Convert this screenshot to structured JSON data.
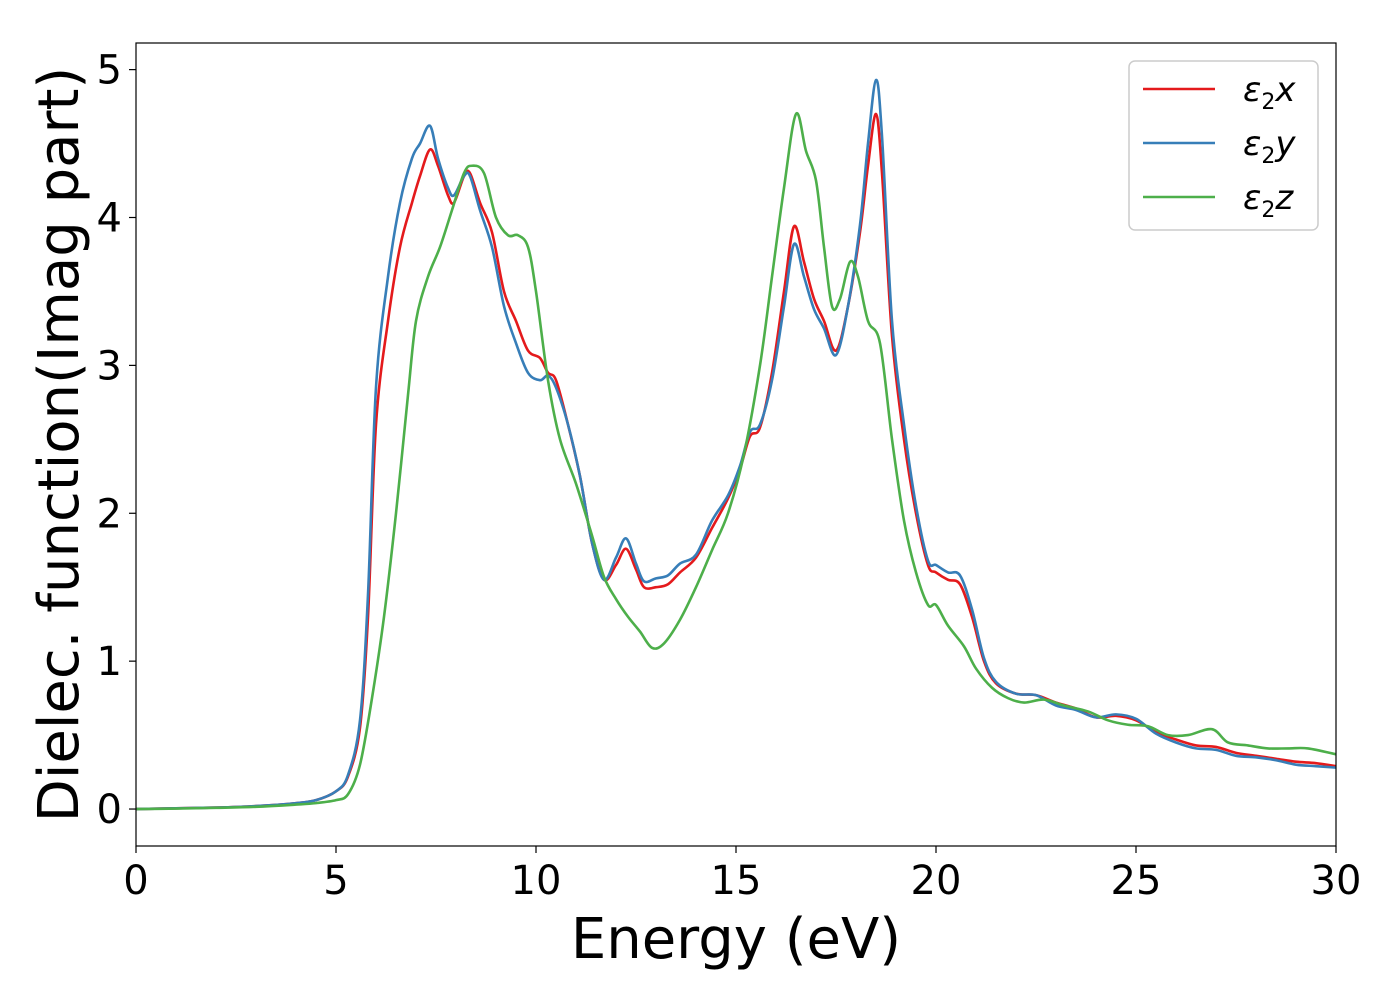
{
  "chart_data": {
    "type": "line",
    "xlabel": "Energy (eV)",
    "ylabel": "Dielec. function(Imag part)",
    "xlim": [
      0,
      30
    ],
    "ylim": [
      -0.25,
      5.18
    ],
    "xticks": [
      0,
      5,
      10,
      15,
      20,
      25,
      30
    ],
    "yticks": [
      0,
      1,
      2,
      3,
      4,
      5
    ],
    "grid": false,
    "legend_position": "top-right",
    "series": [
      {
        "name": "ε2x",
        "legend_base": "ε",
        "legend_sub": "2",
        "legend_var": "x",
        "color": "#e41a1c",
        "points": [
          [
            0,
            0
          ],
          [
            1,
            0.005
          ],
          [
            2,
            0.01
          ],
          [
            3,
            0.02
          ],
          [
            4,
            0.04
          ],
          [
            4.5,
            0.06
          ],
          [
            5,
            0.12
          ],
          [
            5.3,
            0.22
          ],
          [
            5.6,
            0.55
          ],
          [
            5.8,
            1.3
          ],
          [
            6.0,
            2.6
          ],
          [
            6.3,
            3.3
          ],
          [
            6.6,
            3.8
          ],
          [
            6.9,
            4.1
          ],
          [
            7.1,
            4.28
          ],
          [
            7.35,
            4.46
          ],
          [
            7.55,
            4.35
          ],
          [
            7.8,
            4.15
          ],
          [
            7.95,
            4.1
          ],
          [
            8.2,
            4.28
          ],
          [
            8.35,
            4.3
          ],
          [
            8.6,
            4.1
          ],
          [
            8.9,
            3.9
          ],
          [
            9.2,
            3.5
          ],
          [
            9.5,
            3.3
          ],
          [
            9.8,
            3.1
          ],
          [
            10.1,
            3.05
          ],
          [
            10.3,
            2.95
          ],
          [
            10.5,
            2.9
          ],
          [
            10.8,
            2.6
          ],
          [
            11.1,
            2.25
          ],
          [
            11.4,
            1.8
          ],
          [
            11.7,
            1.55
          ],
          [
            12.0,
            1.65
          ],
          [
            12.25,
            1.76
          ],
          [
            12.5,
            1.62
          ],
          [
            12.7,
            1.5
          ],
          [
            13.0,
            1.5
          ],
          [
            13.3,
            1.52
          ],
          [
            13.6,
            1.6
          ],
          [
            14.0,
            1.7
          ],
          [
            14.4,
            1.9
          ],
          [
            14.8,
            2.1
          ],
          [
            15.1,
            2.3
          ],
          [
            15.35,
            2.52
          ],
          [
            15.6,
            2.58
          ],
          [
            15.9,
            2.95
          ],
          [
            16.2,
            3.5
          ],
          [
            16.45,
            3.94
          ],
          [
            16.7,
            3.7
          ],
          [
            16.95,
            3.45
          ],
          [
            17.2,
            3.3
          ],
          [
            17.5,
            3.1
          ],
          [
            17.8,
            3.4
          ],
          [
            18.1,
            3.9
          ],
          [
            18.3,
            4.35
          ],
          [
            18.5,
            4.7
          ],
          [
            18.65,
            4.3
          ],
          [
            18.9,
            3.2
          ],
          [
            19.2,
            2.5
          ],
          [
            19.5,
            2.0
          ],
          [
            19.8,
            1.65
          ],
          [
            20.0,
            1.6
          ],
          [
            20.3,
            1.55
          ],
          [
            20.6,
            1.52
          ],
          [
            20.9,
            1.3
          ],
          [
            21.2,
            1.0
          ],
          [
            21.5,
            0.85
          ],
          [
            22.0,
            0.78
          ],
          [
            22.5,
            0.77
          ],
          [
            23.0,
            0.72
          ],
          [
            23.5,
            0.68
          ],
          [
            24.0,
            0.62
          ],
          [
            24.5,
            0.63
          ],
          [
            25.0,
            0.6
          ],
          [
            25.5,
            0.52
          ],
          [
            26.0,
            0.47
          ],
          [
            26.5,
            0.43
          ],
          [
            27.0,
            0.42
          ],
          [
            27.5,
            0.38
          ],
          [
            28.0,
            0.36
          ],
          [
            28.5,
            0.34
          ],
          [
            29.0,
            0.32
          ],
          [
            29.5,
            0.31
          ],
          [
            30.0,
            0.29
          ]
        ]
      },
      {
        "name": "ε2y",
        "legend_base": "ε",
        "legend_sub": "2",
        "legend_var": "y",
        "color": "#377eb8",
        "points": [
          [
            0,
            0
          ],
          [
            1,
            0.005
          ],
          [
            2,
            0.01
          ],
          [
            3,
            0.02
          ],
          [
            4,
            0.04
          ],
          [
            4.5,
            0.06
          ],
          [
            5,
            0.12
          ],
          [
            5.3,
            0.23
          ],
          [
            5.6,
            0.6
          ],
          [
            5.8,
            1.45
          ],
          [
            6.0,
            2.85
          ],
          [
            6.3,
            3.6
          ],
          [
            6.6,
            4.1
          ],
          [
            6.9,
            4.4
          ],
          [
            7.1,
            4.5
          ],
          [
            7.35,
            4.62
          ],
          [
            7.55,
            4.4
          ],
          [
            7.8,
            4.2
          ],
          [
            7.95,
            4.15
          ],
          [
            8.2,
            4.28
          ],
          [
            8.35,
            4.28
          ],
          [
            8.6,
            4.05
          ],
          [
            8.9,
            3.8
          ],
          [
            9.2,
            3.4
          ],
          [
            9.5,
            3.15
          ],
          [
            9.8,
            2.95
          ],
          [
            10.1,
            2.9
          ],
          [
            10.3,
            2.93
          ],
          [
            10.5,
            2.85
          ],
          [
            10.8,
            2.6
          ],
          [
            11.1,
            2.25
          ],
          [
            11.4,
            1.8
          ],
          [
            11.7,
            1.55
          ],
          [
            12.0,
            1.7
          ],
          [
            12.25,
            1.83
          ],
          [
            12.5,
            1.66
          ],
          [
            12.7,
            1.54
          ],
          [
            13.0,
            1.56
          ],
          [
            13.3,
            1.58
          ],
          [
            13.6,
            1.66
          ],
          [
            14.0,
            1.72
          ],
          [
            14.4,
            1.95
          ],
          [
            14.8,
            2.12
          ],
          [
            15.1,
            2.32
          ],
          [
            15.35,
            2.55
          ],
          [
            15.6,
            2.6
          ],
          [
            15.9,
            2.9
          ],
          [
            16.2,
            3.4
          ],
          [
            16.45,
            3.82
          ],
          [
            16.7,
            3.6
          ],
          [
            16.95,
            3.38
          ],
          [
            17.2,
            3.25
          ],
          [
            17.5,
            3.07
          ],
          [
            17.8,
            3.4
          ],
          [
            18.1,
            3.95
          ],
          [
            18.3,
            4.5
          ],
          [
            18.5,
            4.93
          ],
          [
            18.65,
            4.55
          ],
          [
            18.9,
            3.3
          ],
          [
            19.2,
            2.6
          ],
          [
            19.5,
            2.05
          ],
          [
            19.8,
            1.68
          ],
          [
            20.0,
            1.65
          ],
          [
            20.3,
            1.6
          ],
          [
            20.6,
            1.58
          ],
          [
            20.9,
            1.35
          ],
          [
            21.2,
            1.02
          ],
          [
            21.5,
            0.86
          ],
          [
            22.0,
            0.78
          ],
          [
            22.5,
            0.77
          ],
          [
            23.0,
            0.7
          ],
          [
            23.5,
            0.67
          ],
          [
            24.0,
            0.62
          ],
          [
            24.5,
            0.64
          ],
          [
            25.0,
            0.61
          ],
          [
            25.5,
            0.51
          ],
          [
            26.0,
            0.45
          ],
          [
            26.5,
            0.41
          ],
          [
            27.0,
            0.4
          ],
          [
            27.5,
            0.36
          ],
          [
            28.0,
            0.35
          ],
          [
            28.5,
            0.33
          ],
          [
            29.0,
            0.3
          ],
          [
            29.5,
            0.29
          ],
          [
            30.0,
            0.28
          ]
        ]
      },
      {
        "name": "ε2z",
        "legend_base": "ε",
        "legend_sub": "2",
        "legend_var": "z",
        "color": "#4daf4a",
        "points": [
          [
            0,
            0
          ],
          [
            1,
            0.003
          ],
          [
            2,
            0.008
          ],
          [
            3,
            0.015
          ],
          [
            4,
            0.03
          ],
          [
            4.5,
            0.04
          ],
          [
            5,
            0.06
          ],
          [
            5.3,
            0.1
          ],
          [
            5.6,
            0.3
          ],
          [
            5.9,
            0.75
          ],
          [
            6.2,
            1.3
          ],
          [
            6.5,
            2.0
          ],
          [
            6.8,
            2.8
          ],
          [
            7.0,
            3.3
          ],
          [
            7.3,
            3.6
          ],
          [
            7.6,
            3.8
          ],
          [
            7.9,
            4.05
          ],
          [
            8.2,
            4.3
          ],
          [
            8.4,
            4.35
          ],
          [
            8.7,
            4.3
          ],
          [
            9.0,
            4.0
          ],
          [
            9.3,
            3.88
          ],
          [
            9.55,
            3.88
          ],
          [
            9.8,
            3.8
          ],
          [
            10.0,
            3.5
          ],
          [
            10.3,
            2.9
          ],
          [
            10.6,
            2.5
          ],
          [
            11.0,
            2.2
          ],
          [
            11.4,
            1.85
          ],
          [
            11.7,
            1.57
          ],
          [
            12.0,
            1.42
          ],
          [
            12.3,
            1.3
          ],
          [
            12.6,
            1.2
          ],
          [
            12.9,
            1.09
          ],
          [
            13.2,
            1.12
          ],
          [
            13.6,
            1.28
          ],
          [
            14.0,
            1.5
          ],
          [
            14.4,
            1.75
          ],
          [
            14.8,
            2.0
          ],
          [
            15.2,
            2.4
          ],
          [
            15.6,
            3.0
          ],
          [
            15.9,
            3.6
          ],
          [
            16.2,
            4.2
          ],
          [
            16.5,
            4.7
          ],
          [
            16.75,
            4.45
          ],
          [
            17.0,
            4.25
          ],
          [
            17.2,
            3.8
          ],
          [
            17.4,
            3.4
          ],
          [
            17.6,
            3.45
          ],
          [
            17.85,
            3.7
          ],
          [
            18.05,
            3.6
          ],
          [
            18.3,
            3.3
          ],
          [
            18.6,
            3.15
          ],
          [
            18.9,
            2.5
          ],
          [
            19.2,
            1.95
          ],
          [
            19.5,
            1.6
          ],
          [
            19.8,
            1.38
          ],
          [
            20.0,
            1.38
          ],
          [
            20.3,
            1.24
          ],
          [
            20.7,
            1.1
          ],
          [
            21.0,
            0.95
          ],
          [
            21.4,
            0.82
          ],
          [
            21.8,
            0.75
          ],
          [
            22.2,
            0.72
          ],
          [
            22.7,
            0.74
          ],
          [
            23.2,
            0.7
          ],
          [
            23.8,
            0.66
          ],
          [
            24.3,
            0.6
          ],
          [
            24.8,
            0.57
          ],
          [
            25.3,
            0.56
          ],
          [
            25.8,
            0.5
          ],
          [
            26.3,
            0.5
          ],
          [
            26.9,
            0.54
          ],
          [
            27.3,
            0.45
          ],
          [
            27.8,
            0.43
          ],
          [
            28.3,
            0.41
          ],
          [
            28.8,
            0.41
          ],
          [
            29.3,
            0.41
          ],
          [
            30.0,
            0.37
          ]
        ]
      }
    ]
  }
}
